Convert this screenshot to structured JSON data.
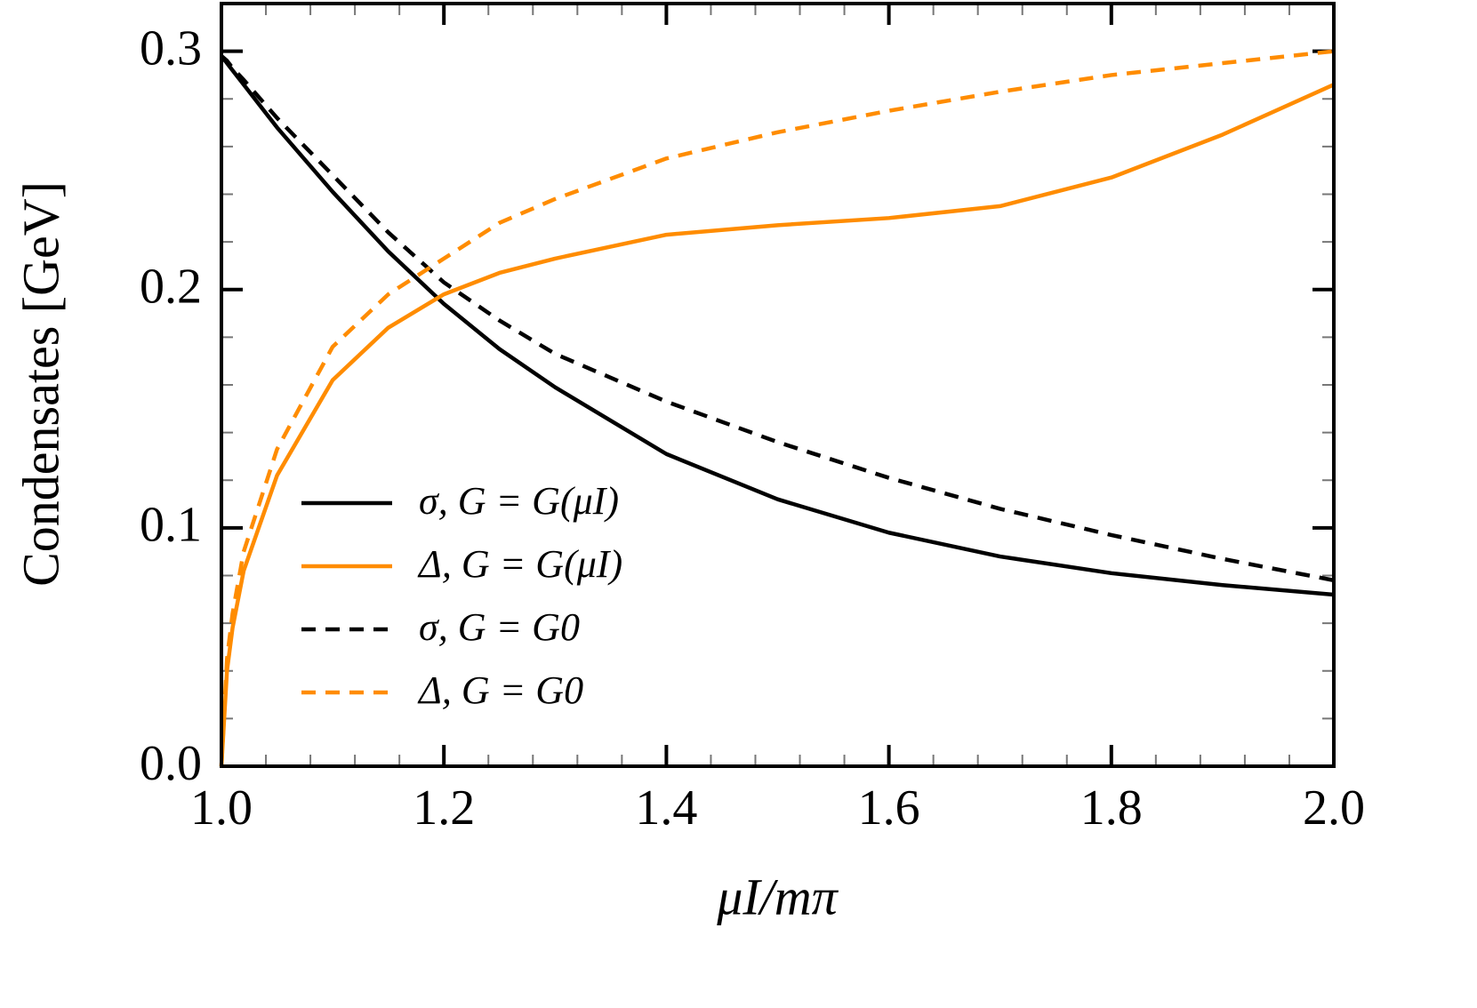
{
  "chart_data": {
    "type": "line",
    "xlabel": "μI/mπ",
    "ylabel": "Condensates [GeV]",
    "x": [
      1.0,
      1.005,
      1.01,
      1.02,
      1.05,
      1.1,
      1.15,
      1.2,
      1.25,
      1.3,
      1.4,
      1.5,
      1.6,
      1.7,
      1.8,
      1.9,
      2.0
    ],
    "series": [
      {
        "name": "σ, G = G(μI)",
        "color": "#000000",
        "dash": "solid",
        "values": [
          0.298,
          0.295,
          0.292,
          0.286,
          0.268,
          0.241,
          0.216,
          0.194,
          0.175,
          0.159,
          0.131,
          0.112,
          0.098,
          0.088,
          0.081,
          0.076,
          0.072
        ]
      },
      {
        "name": "Δ, G = G(μI)",
        "color": "#ff8c00",
        "dash": "solid",
        "values": [
          0,
          0.04,
          0.058,
          0.082,
          0.122,
          0.162,
          0.184,
          0.198,
          0.207,
          0.213,
          0.223,
          0.227,
          0.23,
          0.235,
          0.247,
          0.265,
          0.286
        ]
      },
      {
        "name": "σ, G = G0",
        "color": "#000000",
        "dash": "dashed",
        "values": [
          0.298,
          0.296,
          0.293,
          0.288,
          0.272,
          0.248,
          0.224,
          0.203,
          0.187,
          0.173,
          0.153,
          0.136,
          0.121,
          0.108,
          0.097,
          0.087,
          0.078
        ]
      },
      {
        "name": "Δ, G = G0",
        "color": "#ff8c00",
        "dash": "dashed",
        "values": [
          0,
          0.045,
          0.064,
          0.09,
          0.133,
          0.176,
          0.198,
          0.213,
          0.228,
          0.238,
          0.255,
          0.266,
          0.275,
          0.283,
          0.29,
          0.295,
          0.3
        ]
      }
    ],
    "xlim": [
      1.0,
      2.0
    ],
    "ylim": [
      0,
      0.32
    ],
    "xticks": [
      {
        "value": 1,
        "label": "1.0"
      },
      1.2,
      1.4,
      1.6,
      1.8,
      {
        "value": 2,
        "label": "2.0"
      }
    ],
    "yticks": [
      {
        "value": 0,
        "label": "0.0"
      },
      0.1,
      0.2,
      0.3
    ],
    "minor_xticks": [
      1.04,
      1.08,
      1.12,
      1.16,
      1.24,
      1.28,
      1.32,
      1.36,
      1.44,
      1.48,
      1.52,
      1.56,
      1.64,
      1.68,
      1.72,
      1.76,
      1.84,
      1.88,
      1.92,
      1.96
    ],
    "minor_yticks": [
      0.02,
      0.04,
      0.06,
      0.08,
      0.12,
      0.14,
      0.16,
      0.18,
      0.22,
      0.24,
      0.26,
      0.28
    ],
    "legend": "lower-left"
  }
}
